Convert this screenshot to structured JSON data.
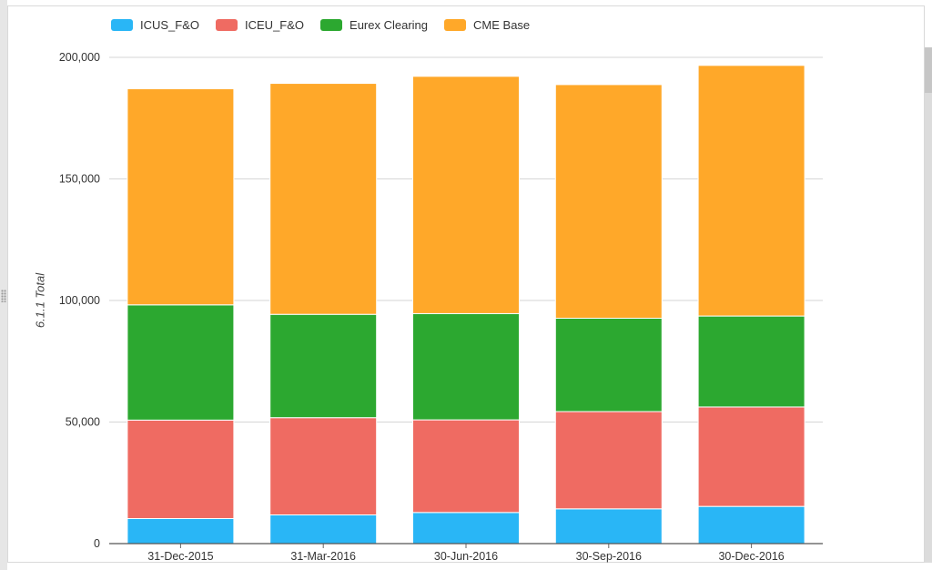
{
  "chart_data": {
    "type": "bar",
    "stacked": true,
    "categories": [
      "31-Dec-2015",
      "31-Mar-2016",
      "30-Jun-2016",
      "30-Sep-2016",
      "30-Dec-2016"
    ],
    "series": [
      {
        "name": "ICUS_F&O",
        "color": "#29b6f6",
        "values": [
          10300,
          11800,
          12800,
          14300,
          15300
        ]
      },
      {
        "name": "ICEU_F&O",
        "color": "#ef6b62",
        "values": [
          40500,
          40000,
          38100,
          40000,
          40900
        ]
      },
      {
        "name": "Eurex Clearing",
        "color": "#2ca830",
        "values": [
          47400,
          42500,
          43700,
          38400,
          37400
        ]
      },
      {
        "name": "CME Base",
        "color": "#ffa829",
        "values": [
          88900,
          95000,
          97600,
          96100,
          103100
        ]
      }
    ],
    "title": "",
    "xlabel": "",
    "ylabel": "6.1.1 Total",
    "ylim": [
      0,
      200000
    ],
    "yticks": [
      0,
      50000,
      100000,
      150000,
      200000
    ],
    "ytick_labels": [
      "0",
      "50,000",
      "100,000",
      "150,000",
      "200,000"
    ],
    "grid": true,
    "legend_position": "top-left"
  }
}
